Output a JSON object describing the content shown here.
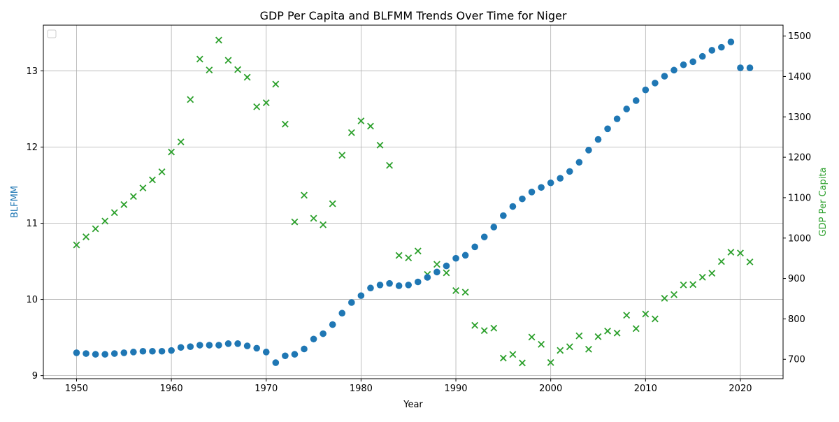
{
  "chart_data": {
    "type": "scatter",
    "title": "GDP Per Capita and BLFMM Trends Over Time for Niger",
    "xlabel": "Year",
    "ylabel_left": "BLFMM",
    "ylabel_right": "GDP Per Capita",
    "xlim": [
      1946.5,
      2024.5
    ],
    "ylim_left": [
      8.96,
      13.6
    ],
    "ylim_right": [
      652,
      1527
    ],
    "x_ticks": [
      1950,
      1960,
      1970,
      1980,
      1990,
      2000,
      2010,
      2020
    ],
    "y_ticks_left": [
      9,
      10,
      11,
      12,
      13
    ],
    "y_ticks_right": [
      700,
      800,
      900,
      1000,
      1100,
      1200,
      1300,
      1400,
      1500
    ],
    "grid": true,
    "legend": "top-left (empty)",
    "colors": {
      "blfmm": "#1f77b4",
      "gdp": "#2ca02c",
      "axis": "#000000",
      "grid": "#b0b0b0"
    },
    "series": [
      {
        "name": "BLFMM",
        "axis": "left",
        "marker": "circle",
        "x": [
          1950,
          1951,
          1952,
          1953,
          1954,
          1955,
          1956,
          1957,
          1958,
          1959,
          1960,
          1961,
          1962,
          1963,
          1964,
          1965,
          1966,
          1967,
          1968,
          1969,
          1970,
          1971,
          1972,
          1973,
          1974,
          1975,
          1976,
          1977,
          1978,
          1979,
          1980,
          1981,
          1982,
          1983,
          1984,
          1985,
          1986,
          1987,
          1988,
          1989,
          1990,
          1991,
          1992,
          1993,
          1994,
          1995,
          1996,
          1997,
          1998,
          1999,
          2000,
          2001,
          2002,
          2003,
          2004,
          2005,
          2006,
          2007,
          2008,
          2009,
          2010,
          2011,
          2012,
          2013,
          2014,
          2015,
          2016,
          2017,
          2018,
          2019,
          2020,
          2021
        ],
        "y": [
          9.3,
          9.29,
          9.28,
          9.28,
          9.29,
          9.3,
          9.31,
          9.32,
          9.32,
          9.32,
          9.33,
          9.37,
          9.38,
          9.4,
          9.4,
          9.4,
          9.42,
          9.42,
          9.39,
          9.36,
          9.31,
          9.17,
          9.26,
          9.28,
          9.35,
          9.48,
          9.55,
          9.67,
          9.82,
          9.96,
          10.05,
          10.15,
          10.19,
          10.21,
          10.18,
          10.19,
          10.23,
          10.29,
          10.36,
          10.44,
          10.54,
          10.58,
          10.69,
          10.82,
          10.95,
          11.1,
          11.22,
          11.32,
          11.41,
          11.47,
          11.53,
          11.59,
          11.68,
          11.8,
          11.96,
          12.1,
          12.24,
          12.37,
          12.5,
          12.61,
          12.75,
          12.84,
          12.93,
          13.01,
          13.08,
          13.12,
          13.19,
          13.27,
          13.31,
          13.38,
          13.04,
          13.04
        ]
      },
      {
        "name": "GDP Per Capita",
        "axis": "right",
        "marker": "x",
        "x": [
          1950,
          1951,
          1952,
          1953,
          1954,
          1955,
          1956,
          1957,
          1958,
          1959,
          1960,
          1961,
          1962,
          1963,
          1964,
          1965,
          1966,
          1967,
          1968,
          1969,
          1970,
          1971,
          1972,
          1973,
          1974,
          1975,
          1976,
          1977,
          1978,
          1979,
          1980,
          1981,
          1982,
          1983,
          1984,
          1985,
          1986,
          1987,
          1988,
          1989,
          1990,
          1991,
          1992,
          1993,
          1994,
          1995,
          1996,
          1997,
          1998,
          1999,
          2000,
          2001,
          2002,
          2003,
          2004,
          2005,
          2006,
          2007,
          2008,
          2009,
          2010,
          2011,
          2012,
          2013,
          2014,
          2015,
          2016,
          2017,
          2018,
          2019,
          2020,
          2021
        ],
        "y": [
          983,
          1003,
          1023,
          1042,
          1063,
          1083,
          1103,
          1124,
          1144,
          1164,
          1213,
          1238,
          1343,
          1443,
          1416,
          1490,
          1440,
          1417,
          1398,
          1325,
          1335,
          1381,
          1282,
          1040,
          1106,
          1049,
          1033,
          1085,
          1205,
          1261,
          1290,
          1277,
          1230,
          1180,
          957,
          951,
          968,
          910,
          935,
          914,
          870,
          866,
          784,
          771,
          777,
          703,
          712,
          691,
          755,
          737,
          692,
          722,
          731,
          758,
          725,
          756,
          770,
          765,
          809,
          776,
          812,
          800,
          851,
          860,
          884,
          885,
          903,
          913,
          942,
          965,
          963,
          941
        ]
      }
    ]
  }
}
